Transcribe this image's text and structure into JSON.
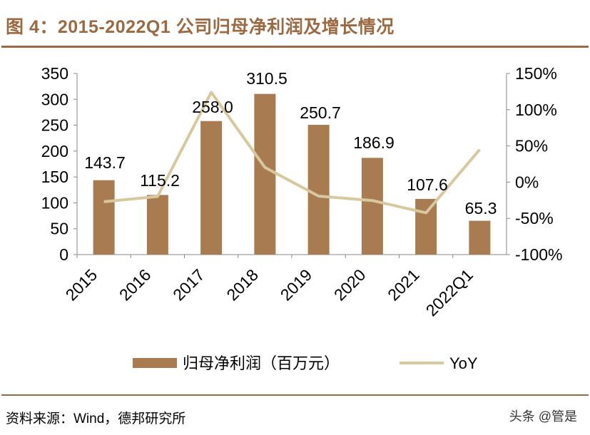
{
  "title": "图 4：2015-2022Q1 公司归母净利润及增长情况",
  "source": "资料来源：Wind，德邦研究所",
  "watermark": "头条 @管是",
  "colors": {
    "title": "#9B6A43",
    "bar": "#A87C50",
    "line": "#D8C8A0"
  },
  "chart_data": {
    "type": "bar+line",
    "categories": [
      "2015",
      "2016",
      "2017",
      "2018",
      "2019",
      "2020",
      "2021",
      "2022Q1"
    ],
    "series": [
      {
        "name": "归母净利润（百万元）",
        "type": "bar",
        "axis": "left",
        "values": [
          143.7,
          115.2,
          258.0,
          310.5,
          250.7,
          186.9,
          107.6,
          65.3
        ],
        "labels": [
          "143.7",
          "115.2",
          "258.0",
          "310.5",
          "250.7",
          "186.9",
          "107.6",
          "65.3"
        ]
      },
      {
        "name": "YoY",
        "type": "line",
        "axis": "right",
        "values": [
          -27,
          -19.8,
          124,
          20.3,
          -19.3,
          -25.4,
          -42.4,
          45
        ]
      }
    ],
    "y_left": {
      "range": [
        0,
        350
      ],
      "ticks": [
        "0",
        "50",
        "100",
        "150",
        "200",
        "250",
        "300",
        "350"
      ]
    },
    "y_right": {
      "range": [
        -100,
        150
      ],
      "ticks": [
        "-100%",
        "-50%",
        "0%",
        "50%",
        "100%",
        "150%"
      ]
    },
    "grid": false,
    "legend": "bottom"
  }
}
